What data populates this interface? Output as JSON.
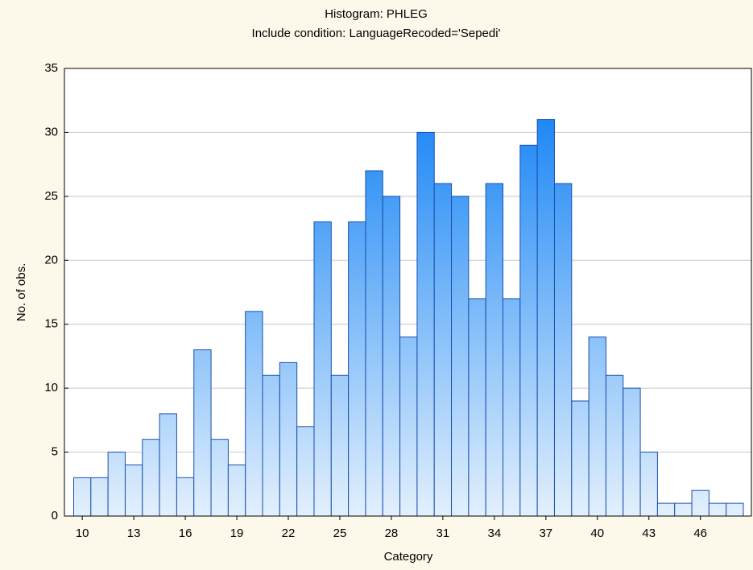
{
  "chart_data": {
    "type": "bar",
    "title": "Histogram: PHLEG",
    "subtitle": "Include condition: LanguageRecoded='Sepedi'",
    "x_label": "Category",
    "y_label": "No. of obs.",
    "categories": [
      10,
      null,
      null,
      13,
      null,
      null,
      16,
      null,
      null,
      19,
      null,
      null,
      22,
      null,
      null,
      25,
      null,
      null,
      28,
      null,
      null,
      31,
      null,
      null,
      34,
      null,
      null,
      37,
      null,
      null,
      40,
      null,
      null,
      43,
      null,
      null,
      46,
      null,
      null
    ],
    "values": [
      3,
      3,
      5,
      4,
      6,
      8,
      3,
      13,
      6,
      4,
      16,
      11,
      12,
      7,
      23,
      11,
      23,
      27,
      25,
      14,
      30,
      26,
      25,
      17,
      26,
      17,
      29,
      31,
      26,
      9,
      14,
      11,
      10,
      5,
      1,
      1,
      2,
      1,
      1
    ],
    "color": "#1e88f5",
    "ylim": [
      0,
      35
    ],
    "yticks": [
      0,
      5,
      10,
      15,
      20,
      25,
      30,
      35
    ],
    "grid": true
  }
}
